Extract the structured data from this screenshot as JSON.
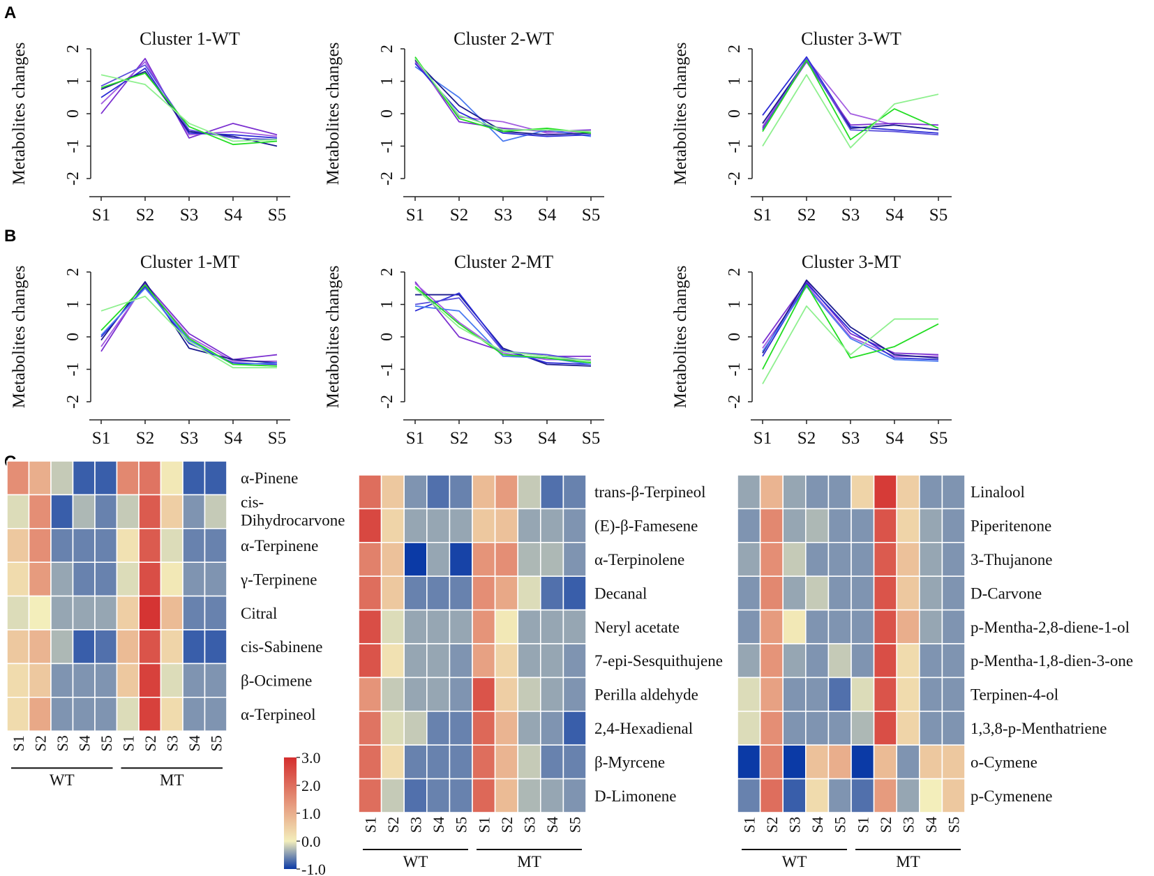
{
  "panel_labels": {
    "a": "A",
    "b": "B",
    "c": "C"
  },
  "palette": {
    "lines": [
      "#2b2bd6",
      "#1a1a8c",
      "#5a4fdc",
      "#7b2fd0",
      "#a35ce0",
      "#4a7af0",
      "#6e6ee8",
      "#22dd22",
      "#8ef08e"
    ],
    "heat_low": "#0b3aa6",
    "heat_mid": "#f3eebb",
    "heat_high": "#d42e2e"
  },
  "chart_data": [
    {
      "type": "line",
      "panel": "A",
      "title": "Cluster 1-WT",
      "ylabel": "Metabolites changes",
      "ylim": [
        -2,
        2
      ],
      "yticks": [
        2,
        1,
        0,
        -1,
        -2
      ],
      "categories": [
        "S1",
        "S2",
        "S3",
        "S4",
        "S5"
      ],
      "series": [
        {
          "color": "#7b2fd0",
          "values": [
            0.0,
            1.7,
            -0.75,
            -0.3,
            -0.65
          ]
        },
        {
          "color": "#a35ce0",
          "values": [
            0.3,
            1.6,
            -0.65,
            -0.55,
            -0.7
          ]
        },
        {
          "color": "#2b2bd6",
          "values": [
            0.5,
            1.4,
            -0.6,
            -0.65,
            -0.75
          ]
        },
        {
          "color": "#1a1a8c",
          "values": [
            0.75,
            1.3,
            -0.55,
            -0.7,
            -1.0
          ]
        },
        {
          "color": "#5a4fdc",
          "values": [
            0.85,
            1.5,
            -0.5,
            -0.75,
            -0.8
          ]
        },
        {
          "color": "#22dd22",
          "values": [
            0.8,
            1.25,
            -0.4,
            -0.95,
            -0.85
          ]
        },
        {
          "color": "#8ef08e",
          "values": [
            1.2,
            0.9,
            -0.3,
            -0.85,
            -0.8
          ]
        }
      ]
    },
    {
      "type": "line",
      "panel": "A",
      "title": "Cluster 2-WT",
      "ylabel": "Metabolites changes",
      "ylim": [
        -2,
        2
      ],
      "yticks": [
        2,
        1,
        0,
        -1,
        -2
      ],
      "categories": [
        "S1",
        "S2",
        "S3",
        "S4",
        "S5"
      ],
      "series": [
        {
          "color": "#7b2fd0",
          "values": [
            1.7,
            -0.25,
            -0.45,
            -0.55,
            -0.5
          ]
        },
        {
          "color": "#a35ce0",
          "values": [
            1.6,
            -0.1,
            -0.25,
            -0.6,
            -0.55
          ]
        },
        {
          "color": "#4a7af0",
          "values": [
            1.45,
            0.5,
            -0.85,
            -0.5,
            -0.7
          ]
        },
        {
          "color": "#1a1a8c",
          "values": [
            1.65,
            0.25,
            -0.55,
            -0.65,
            -0.6
          ]
        },
        {
          "color": "#2b2bd6",
          "values": [
            1.55,
            0.05,
            -0.6,
            -0.7,
            -0.65
          ]
        },
        {
          "color": "#22dd22",
          "values": [
            1.75,
            -0.15,
            -0.55,
            -0.45,
            -0.6
          ]
        },
        {
          "color": "#8ef08e",
          "values": [
            1.7,
            -0.05,
            -0.5,
            -0.5,
            -0.55
          ]
        }
      ]
    },
    {
      "type": "line",
      "panel": "A",
      "title": "Cluster 3-WT",
      "ylabel": "Metabolites changes",
      "ylim": [
        -2,
        2
      ],
      "yticks": [
        2,
        1,
        0,
        -1,
        -2
      ],
      "categories": [
        "S1",
        "S2",
        "S3",
        "S4",
        "S5"
      ],
      "series": [
        {
          "color": "#a35ce0",
          "values": [
            -0.4,
            1.7,
            0.0,
            -0.35,
            -0.5
          ]
        },
        {
          "color": "#2b2bd6",
          "values": [
            -0.05,
            1.75,
            -0.4,
            -0.5,
            -0.6
          ]
        },
        {
          "color": "#1a1a8c",
          "values": [
            -0.3,
            1.65,
            -0.45,
            -0.35,
            -0.5
          ]
        },
        {
          "color": "#7b2fd0",
          "values": [
            -0.45,
            1.6,
            -0.35,
            -0.3,
            -0.35
          ]
        },
        {
          "color": "#5a4fdc",
          "values": [
            -0.5,
            1.7,
            -0.5,
            -0.55,
            -0.65
          ]
        },
        {
          "color": "#22dd22",
          "values": [
            -0.55,
            1.65,
            -0.8,
            0.15,
            -0.45
          ]
        },
        {
          "color": "#8ef08e",
          "values": [
            -1.0,
            1.2,
            -1.05,
            0.3,
            0.6
          ]
        }
      ]
    },
    {
      "type": "line",
      "panel": "B",
      "title": "Cluster 1-MT",
      "ylabel": "Metabolites changes",
      "ylim": [
        -2,
        2
      ],
      "yticks": [
        2,
        1,
        0,
        -1,
        -2
      ],
      "categories": [
        "S1",
        "S2",
        "S3",
        "S4",
        "S5"
      ],
      "series": [
        {
          "color": "#7b2fd0",
          "values": [
            -0.45,
            1.65,
            0.1,
            -0.7,
            -0.55
          ]
        },
        {
          "color": "#a35ce0",
          "values": [
            -0.3,
            1.6,
            0.0,
            -0.75,
            -0.75
          ]
        },
        {
          "color": "#1a1a8c",
          "values": [
            -0.1,
            1.7,
            -0.35,
            -0.7,
            -0.8
          ]
        },
        {
          "color": "#2b2bd6",
          "values": [
            0.0,
            1.55,
            -0.2,
            -0.8,
            -0.85
          ]
        },
        {
          "color": "#4a7af0",
          "values": [
            0.05,
            1.5,
            -0.1,
            -0.85,
            -0.8
          ]
        },
        {
          "color": "#22dd22",
          "values": [
            0.2,
            1.6,
            -0.05,
            -0.85,
            -0.9
          ]
        },
        {
          "color": "#8ef08e",
          "values": [
            0.8,
            1.25,
            -0.15,
            -0.95,
            -0.95
          ]
        }
      ]
    },
    {
      "type": "line",
      "panel": "B",
      "title": "Cluster 2-MT",
      "ylabel": "Metabolites changes",
      "ylim": [
        -2,
        2
      ],
      "yticks": [
        2,
        1,
        0,
        -1,
        -2
      ],
      "categories": [
        "S1",
        "S2",
        "S3",
        "S4",
        "S5"
      ],
      "series": [
        {
          "color": "#7b2fd0",
          "values": [
            1.7,
            0.0,
            -0.45,
            -0.6,
            -0.6
          ]
        },
        {
          "color": "#a35ce0",
          "values": [
            1.65,
            0.45,
            -0.5,
            -0.7,
            -0.7
          ]
        },
        {
          "color": "#1a1a8c",
          "values": [
            1.3,
            1.3,
            -0.35,
            -0.85,
            -0.9
          ]
        },
        {
          "color": "#2b2bd6",
          "values": [
            0.8,
            1.35,
            -0.4,
            -0.8,
            -0.85
          ]
        },
        {
          "color": "#4a7af0",
          "values": [
            0.95,
            0.8,
            -0.6,
            -0.65,
            -0.85
          ]
        },
        {
          "color": "#5a4fdc",
          "values": [
            1.0,
            1.2,
            -0.45,
            -0.55,
            -0.75
          ]
        },
        {
          "color": "#22dd22",
          "values": [
            1.55,
            0.4,
            -0.55,
            -0.65,
            -0.8
          ]
        },
        {
          "color": "#8ef08e",
          "values": [
            1.5,
            0.3,
            -0.45,
            -0.6,
            -0.75
          ]
        }
      ]
    },
    {
      "type": "line",
      "panel": "B",
      "title": "Cluster 3-MT",
      "ylabel": "Metabolites changes",
      "ylim": [
        -2,
        2
      ],
      "yticks": [
        2,
        1,
        0,
        -1,
        -2
      ],
      "categories": [
        "S1",
        "S2",
        "S3",
        "S4",
        "S5"
      ],
      "series": [
        {
          "color": "#7b2fd0",
          "values": [
            -0.2,
            1.7,
            0.1,
            -0.5,
            -0.55
          ]
        },
        {
          "color": "#a35ce0",
          "values": [
            -0.35,
            1.6,
            0.0,
            -0.6,
            -0.6
          ]
        },
        {
          "color": "#1a1a8c",
          "values": [
            -0.5,
            1.75,
            0.3,
            -0.55,
            -0.65
          ]
        },
        {
          "color": "#2b2bd6",
          "values": [
            -0.6,
            1.65,
            0.2,
            -0.65,
            -0.7
          ]
        },
        {
          "color": "#4a7af0",
          "values": [
            -0.45,
            1.55,
            -0.05,
            -0.7,
            -0.75
          ]
        },
        {
          "color": "#22dd22",
          "values": [
            -1.0,
            1.6,
            -0.65,
            -0.3,
            0.4
          ]
        },
        {
          "color": "#8ef08e",
          "values": [
            -1.45,
            0.95,
            -0.55,
            0.55,
            0.55
          ]
        }
      ]
    },
    {
      "type": "heatmap",
      "panel": "C",
      "columns": [
        "S1",
        "S2",
        "S3",
        "S4",
        "S5",
        "S1",
        "S2",
        "S3",
        "S4",
        "S5"
      ],
      "groups": [
        "WT",
        "MT"
      ],
      "rows": [
        "α-Pinene",
        "cis-\nDihydrocarvone",
        "α-Terpinene",
        "γ-Terpinene",
        "Citral",
        "cis-Sabinene",
        "β-Ocimene",
        "α-Terpineol"
      ],
      "values": [
        [
          1.5,
          1.0,
          -0.2,
          -0.8,
          -0.8,
          1.6,
          1.9,
          0.1,
          -0.8,
          -0.8
        ],
        [
          -0.1,
          1.5,
          -0.8,
          -0.3,
          -0.6,
          -0.2,
          2.3,
          0.5,
          -0.5,
          -0.2
        ],
        [
          0.6,
          1.5,
          -0.6,
          -0.6,
          -0.6,
          0.2,
          2.3,
          -0.1,
          -0.6,
          -0.6
        ],
        [
          0.3,
          1.3,
          -0.4,
          -0.6,
          -0.6,
          -0.1,
          2.5,
          0.1,
          -0.5,
          -0.5
        ],
        [
          -0.1,
          0.0,
          -0.4,
          -0.4,
          -0.4,
          0.5,
          2.9,
          0.8,
          -0.6,
          -0.6
        ],
        [
          0.6,
          0.9,
          -0.3,
          -0.8,
          -0.7,
          0.8,
          2.4,
          0.4,
          -0.8,
          -0.8
        ],
        [
          0.3,
          0.6,
          -0.5,
          -0.5,
          -0.5,
          0.6,
          2.7,
          -0.1,
          -0.5,
          -0.5
        ],
        [
          0.3,
          1.1,
          -0.5,
          -0.5,
          -0.5,
          -0.1,
          2.7,
          0.3,
          -0.5,
          -0.5
        ]
      ],
      "range": [
        -1.0,
        3.0
      ]
    },
    {
      "type": "heatmap",
      "panel": "C",
      "columns": [
        "S1",
        "S2",
        "S3",
        "S4",
        "S5",
        "S1",
        "S2",
        "S3",
        "S4",
        "S5"
      ],
      "groups": [
        "WT",
        "MT"
      ],
      "rows": [
        "trans-β-Terpineol",
        "(E)-β-Famesene",
        "α-Terpinolene",
        "Decanal",
        "Neryl acetate",
        "7-epi-Sesquithujene",
        "Perilla aldehyde",
        "2,4-Hexadienal",
        "β-Myrcene",
        "D-Limonene"
      ],
      "values": [
        [
          2.0,
          0.6,
          -0.5,
          -0.7,
          -0.6,
          0.8,
          1.3,
          -0.2,
          -0.7,
          -0.6
        ],
        [
          2.6,
          0.4,
          -0.4,
          -0.4,
          -0.4,
          0.6,
          0.7,
          -0.4,
          -0.4,
          -0.5
        ],
        [
          1.7,
          0.7,
          -1.0,
          -0.4,
          -0.95,
          1.4,
          1.5,
          -0.3,
          -0.3,
          -0.5
        ],
        [
          2.0,
          0.6,
          -0.6,
          -0.6,
          -0.6,
          1.5,
          1.1,
          -0.1,
          -0.7,
          -0.8
        ],
        [
          2.5,
          -0.1,
          -0.4,
          -0.4,
          -0.4,
          1.4,
          0.1,
          -0.4,
          -0.4,
          -0.4
        ],
        [
          2.4,
          0.2,
          -0.4,
          -0.4,
          -0.5,
          1.2,
          0.4,
          -0.4,
          -0.4,
          -0.5
        ],
        [
          1.4,
          -0.2,
          -0.4,
          -0.4,
          -0.5,
          2.4,
          0.5,
          -0.2,
          -0.4,
          -0.5
        ],
        [
          1.9,
          -0.1,
          -0.2,
          -0.6,
          -0.6,
          2.1,
          0.9,
          -0.4,
          -0.5,
          -0.8
        ],
        [
          2.0,
          0.3,
          -0.6,
          -0.6,
          -0.6,
          2.0,
          0.9,
          -0.2,
          -0.6,
          -0.6
        ],
        [
          2.0,
          -0.2,
          -0.7,
          -0.6,
          -0.6,
          2.1,
          0.8,
          -0.3,
          -0.4,
          -0.5
        ]
      ],
      "range": [
        -1.0,
        3.0
      ]
    },
    {
      "type": "heatmap",
      "panel": "C",
      "columns": [
        "S1",
        "S2",
        "S3",
        "S4",
        "S5",
        "S1",
        "S2",
        "S3",
        "S4",
        "S5"
      ],
      "groups": [
        "WT",
        "MT"
      ],
      "rows": [
        "Linalool",
        "Piperitenone",
        "3-Thujanone",
        "D-Carvone",
        "p-Mentha-2,8-diene-1-ol",
        "p-Mentha-1,8-dien-3-one",
        "Terpinen-4-ol",
        "1,3,8-p-Menthatriene",
        "o-Cymene",
        "p-Cymenene"
      ],
      "values": [
        [
          -0.4,
          0.9,
          -0.4,
          -0.5,
          -0.5,
          0.4,
          2.8,
          0.5,
          -0.5,
          -0.5
        ],
        [
          -0.5,
          1.6,
          -0.4,
          -0.3,
          -0.5,
          -0.5,
          2.4,
          0.4,
          -0.4,
          -0.5
        ],
        [
          -0.4,
          1.5,
          -0.2,
          -0.5,
          -0.5,
          -0.5,
          2.3,
          0.7,
          -0.4,
          -0.5
        ],
        [
          -0.5,
          1.6,
          -0.4,
          -0.2,
          -0.5,
          -0.5,
          2.4,
          0.6,
          -0.4,
          -0.5
        ],
        [
          -0.5,
          1.3,
          0.1,
          -0.5,
          -0.5,
          -0.5,
          2.4,
          1.0,
          -0.4,
          -0.5
        ],
        [
          -0.4,
          1.4,
          -0.4,
          -0.5,
          -0.2,
          -0.5,
          2.5,
          0.3,
          -0.5,
          -0.5
        ],
        [
          -0.1,
          1.2,
          -0.5,
          -0.5,
          -0.7,
          -0.1,
          2.4,
          0.3,
          -0.5,
          -0.5
        ],
        [
          -0.1,
          1.5,
          -0.5,
          -0.5,
          -0.5,
          -0.3,
          2.5,
          0.4,
          -0.5,
          -0.5
        ],
        [
          -1.0,
          1.7,
          -1.0,
          0.7,
          1.0,
          -1.0,
          0.8,
          -0.5,
          0.6,
          0.6
        ],
        [
          -0.6,
          2.0,
          -0.8,
          0.3,
          -0.5,
          -0.7,
          1.3,
          -0.4,
          0.0,
          0.6
        ]
      ],
      "range": [
        -1.0,
        3.0
      ]
    }
  ],
  "colorbar": {
    "ticks": [
      "3.0",
      "2.0",
      "1.0",
      "0.0",
      "-1.0"
    ],
    "values": [
      3.0,
      2.0,
      1.0,
      0.0,
      -1.0
    ]
  }
}
